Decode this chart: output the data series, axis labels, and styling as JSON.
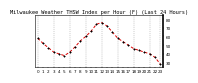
{
  "title": "Milwaukee Weather THSW Index per Hour (F) (Last 24 Hours)",
  "hours": [
    0,
    1,
    2,
    3,
    4,
    5,
    6,
    7,
    8,
    9,
    10,
    11,
    12,
    13,
    14,
    15,
    16,
    17,
    18,
    19,
    20,
    21,
    22,
    23
  ],
  "values": [
    58,
    52,
    47,
    42,
    40,
    38,
    42,
    48,
    55,
    60,
    66,
    74,
    76,
    72,
    65,
    58,
    54,
    50,
    46,
    44,
    42,
    40,
    36,
    28
  ],
  "line_color": "#DD0000",
  "marker_color": "#000000",
  "bg_color": "#FFFFFF",
  "plot_bg": "#FFFFFF",
  "grid_color": "#999999",
  "ylim": [
    25,
    85
  ],
  "ytick_values": [
    30,
    40,
    50,
    60,
    70,
    80
  ],
  "ytick_labels": [
    "30",
    "40",
    "50",
    "60",
    "70",
    "80"
  ],
  "xlabel_fontsize": 3.0,
  "ylabel_fontsize": 3.0,
  "title_fontsize": 3.8,
  "grid_hours": [
    0,
    3,
    6,
    9,
    12,
    15,
    18,
    21,
    23
  ]
}
